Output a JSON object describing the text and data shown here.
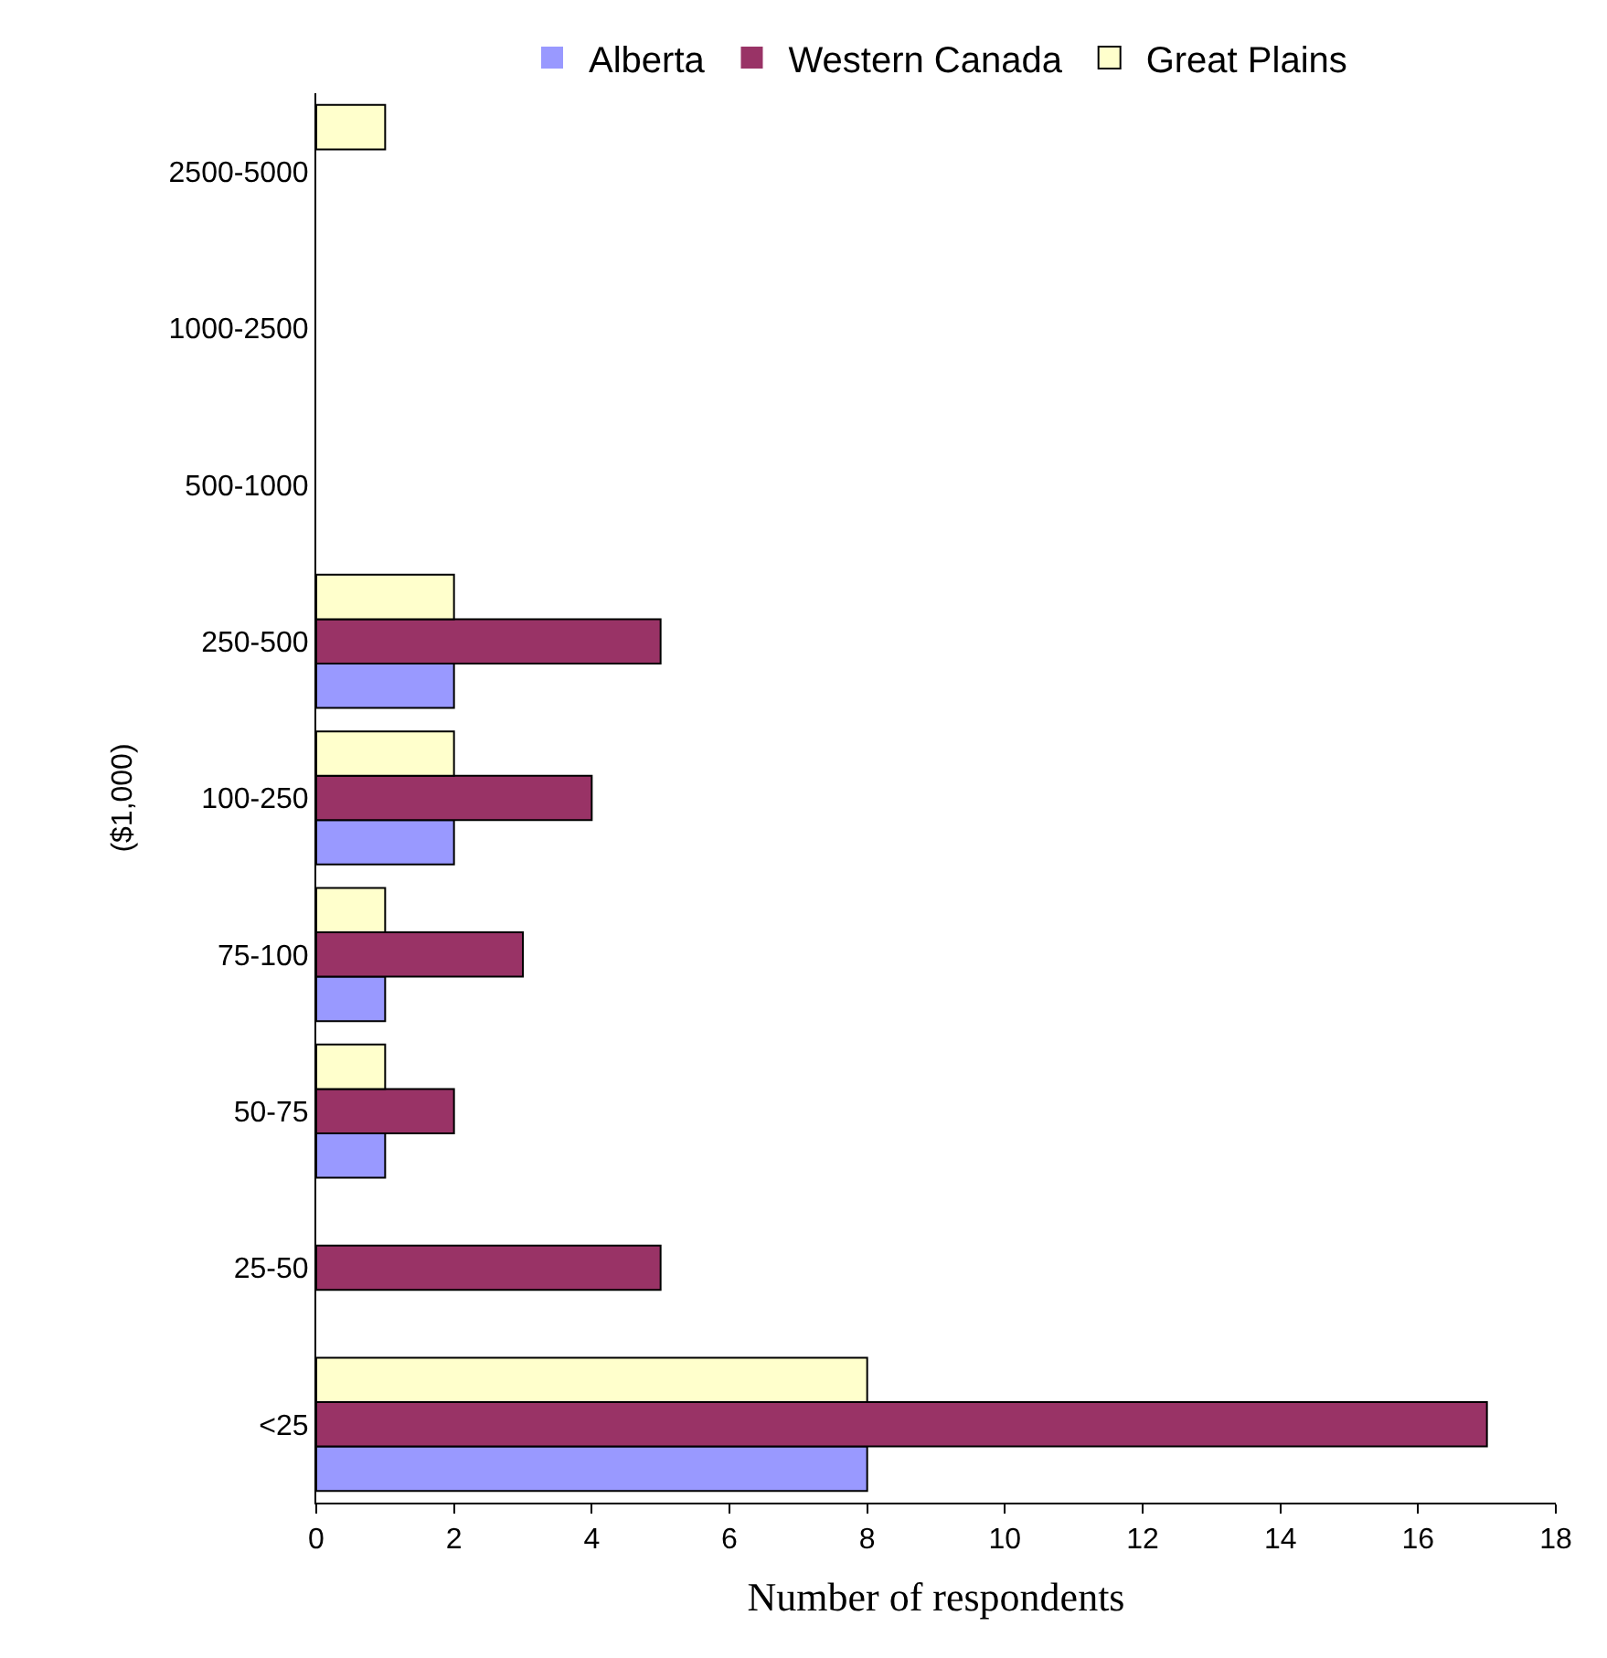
{
  "chart_data": {
    "type": "bar",
    "orientation": "horizontal",
    "xlabel": "Number of respondents",
    "ylabel": "($1,000)",
    "categories": [
      "2500-5000",
      "1000-2500",
      "500-1000",
      "250-500",
      "100-250",
      "75-100",
      "50-75",
      "25-50",
      "<25"
    ],
    "series": [
      {
        "name": "Alberta",
        "color": "#9999ff",
        "values": [
          0,
          0,
          0,
          2,
          2,
          1,
          1,
          0,
          8
        ]
      },
      {
        "name": "Western Canada",
        "color": "#993366",
        "values": [
          0,
          0,
          0,
          5,
          4,
          3,
          2,
          5,
          17
        ]
      },
      {
        "name": "Great Plains",
        "color": "#ffffcc",
        "values": [
          1,
          0,
          0,
          2,
          2,
          1,
          1,
          0,
          8
        ]
      }
    ],
    "xlim": [
      0,
      18
    ],
    "xticks": [
      0,
      2,
      4,
      6,
      8,
      10,
      12,
      14,
      16,
      18
    ],
    "legend": "top"
  }
}
